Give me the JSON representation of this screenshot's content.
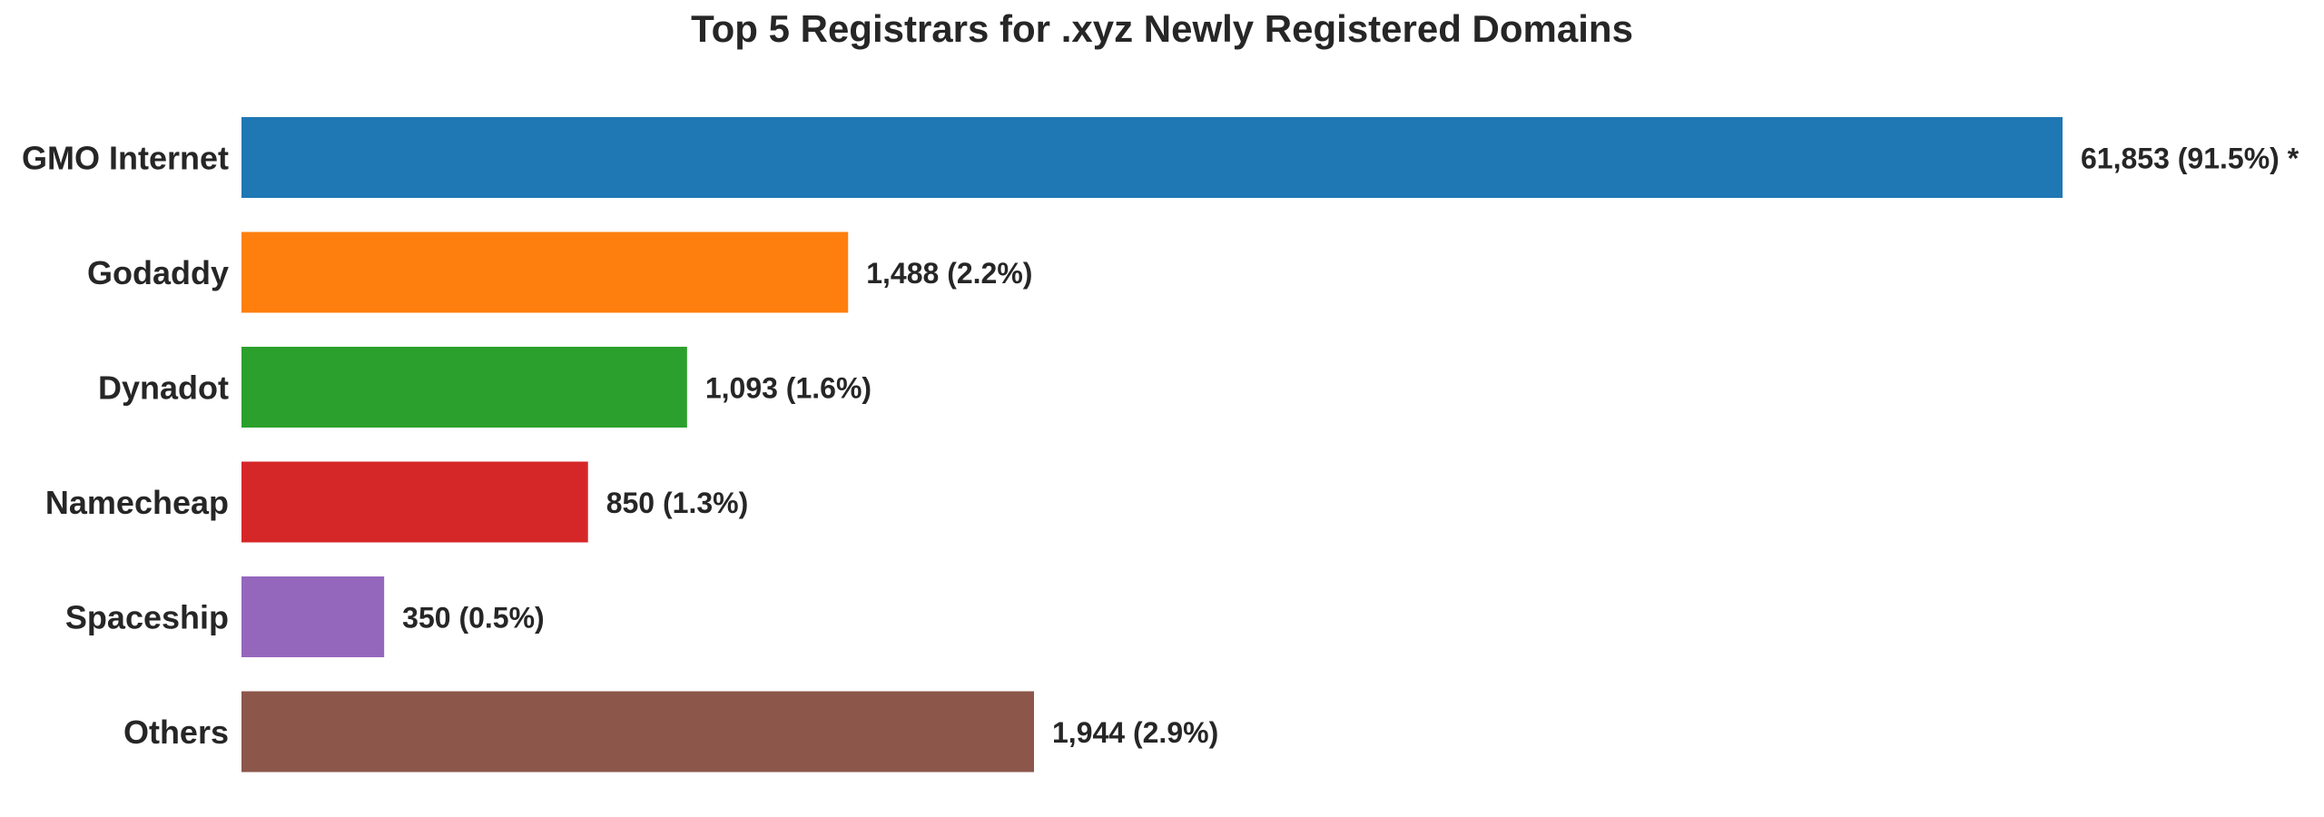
{
  "chart_data": {
    "type": "bar",
    "orientation": "horizontal",
    "title": "Top 5 Registrars for .xyz Newly Registered Domains",
    "xlabel": "",
    "ylabel": "",
    "categories": [
      "GMO Internet",
      "Godaddy",
      "Dynadot",
      "Namecheap",
      "Spaceship",
      "Others"
    ],
    "values": [
      61853,
      1488,
      1093,
      850,
      350,
      1944
    ],
    "labels": [
      "61,853 (91.5%) *",
      "1,488 (2.2%)",
      "1,093 (1.6%)",
      "850 (1.3%)",
      "350 (0.5%)",
      "1,944 (2.9%)"
    ],
    "colors": [
      "#1f77b4",
      "#ff7f0e",
      "#2ca02c",
      "#d62728",
      "#9467bd",
      "#8c564b"
    ],
    "grid": false,
    "legend": "none"
  }
}
